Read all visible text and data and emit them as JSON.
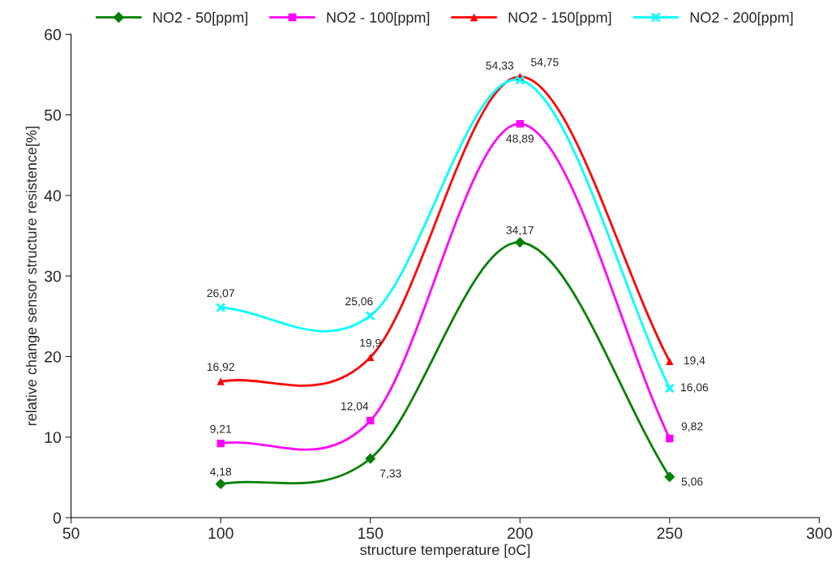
{
  "chart_data": {
    "type": "line",
    "xlabel": "structure temperature [oC]",
    "ylabel": "relative change sensor structure resistence[%]",
    "x": [
      100,
      150,
      200,
      250
    ],
    "series": [
      {
        "name": "NO2 - 50[ppm]",
        "color": "#008000",
        "marker": "diamond",
        "values": [
          4.18,
          7.33,
          34.17,
          5.06
        ],
        "value_labels": [
          "4,18",
          "7,33",
          "34,17",
          "5,06"
        ]
      },
      {
        "name": "NO2 - 100[ppm]",
        "color": "#ff00ff",
        "marker": "square",
        "values": [
          9.21,
          12.04,
          48.89,
          9.82
        ],
        "value_labels": [
          "9,21",
          "12,04",
          "48,89",
          "9,82"
        ]
      },
      {
        "name": "NO2 - 150[ppm]",
        "color": "#ff0000",
        "marker": "triangle",
        "values": [
          16.92,
          19.9,
          54.75,
          19.4
        ],
        "value_labels": [
          "16,92",
          "19,9",
          "54,75",
          "19,4"
        ]
      },
      {
        "name": "NO2 - 200[ppm]",
        "color": "#00ffff",
        "marker": "cross",
        "values": [
          26.07,
          25.06,
          54.33,
          16.06
        ],
        "value_labels": [
          "26,07",
          "25,06",
          "54,33",
          "16,06"
        ]
      }
    ],
    "xlim": [
      50,
      300
    ],
    "xticks": [
      50,
      100,
      150,
      200,
      250,
      300
    ],
    "ylim": [
      0,
      60
    ],
    "yticks": [
      0,
      10,
      20,
      30,
      40,
      50,
      60
    ],
    "grid": false,
    "legend": "top",
    "line_style": "solid"
  }
}
